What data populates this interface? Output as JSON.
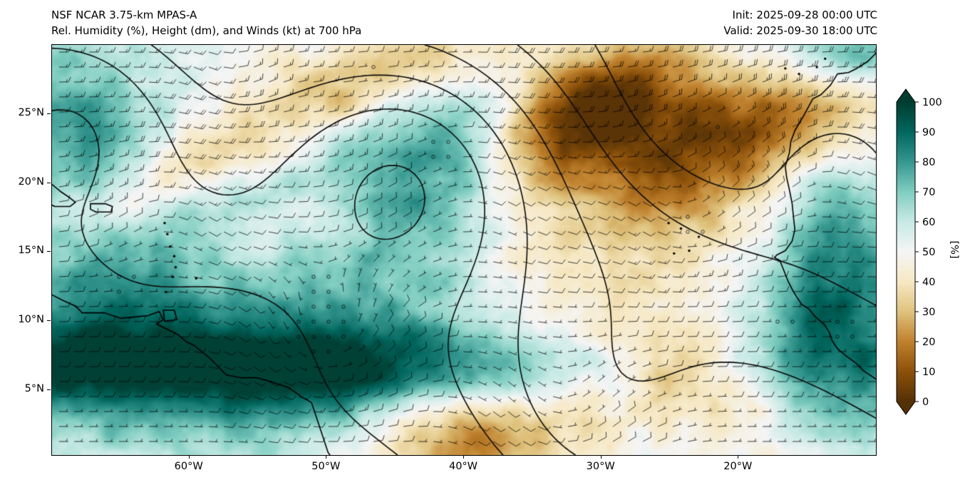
{
  "header": {
    "model": "NSF NCAR 3.75-km MPAS-A",
    "field": "Rel. Humidity (%), Height (dm), and Winds (kt) at 700 hPa",
    "init": "Init: 2025-09-28 00:00 UTC",
    "valid": "Valid: 2025-09-30 18:00 UTC"
  },
  "chart_data": {
    "type": "heatmap",
    "title": "Rel. Humidity (%), Height (dm), and Winds (kt) at 700 hPa",
    "model": "NSF NCAR 3.75-km MPAS-A",
    "init_time": "2025-09-28 00:00 UTC",
    "valid_time": "2025-09-30 18:00 UTC",
    "level": "700 hPa",
    "x_tick_labels": [
      "60°W",
      "50°W",
      "40°W",
      "30°W",
      "20°W"
    ],
    "x_tick_lon_w": [
      60,
      50,
      40,
      30,
      20
    ],
    "y_tick_labels": [
      "25°N",
      "20°N",
      "15°N",
      "10°N",
      "5°N"
    ],
    "y_tick_lat_n": [
      25,
      20,
      15,
      10,
      5
    ],
    "lon_extent_w": [
      70,
      10
    ],
    "lat_extent_n": [
      0.3,
      30
    ],
    "overlays": [
      "relative humidity shading (%)",
      "geopotential height contours (black)",
      "wind barbs (kt); open circles = calm",
      "coastlines"
    ],
    "colorbar": {
      "label": "[%]",
      "ticks": [
        0,
        10,
        20,
        30,
        40,
        50,
        60,
        70,
        80,
        90,
        100
      ],
      "min": 0,
      "max": 100,
      "extend": "both",
      "palette": "BrBG",
      "stops": [
        {
          "v": 0,
          "c": "#543005"
        },
        {
          "v": 10,
          "c": "#8c510a"
        },
        {
          "v": 20,
          "c": "#bf812d"
        },
        {
          "v": 30,
          "c": "#dfc27d"
        },
        {
          "v": 40,
          "c": "#f6e8c3"
        },
        {
          "v": 50,
          "c": "#f5f5f5"
        },
        {
          "v": 60,
          "c": "#c7eae5"
        },
        {
          "v": 70,
          "c": "#80cdc1"
        },
        {
          "v": 80,
          "c": "#35978f"
        },
        {
          "v": 90,
          "c": "#01665e"
        },
        {
          "v": 100,
          "c": "#003c30"
        }
      ]
    }
  }
}
